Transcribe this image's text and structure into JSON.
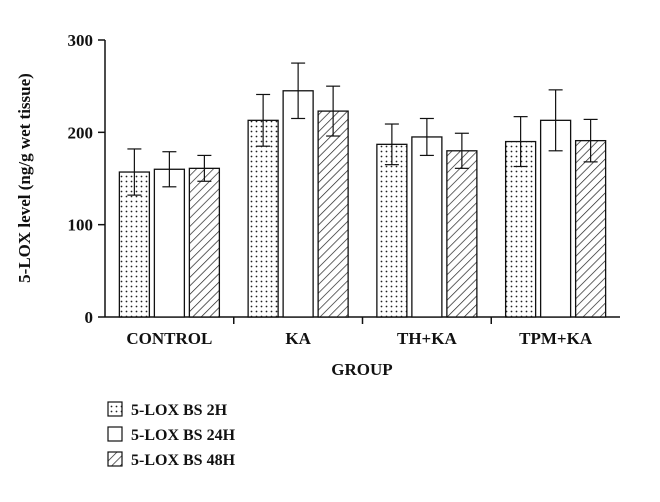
{
  "chart_data": {
    "type": "bar",
    "categories": [
      "CONTROL",
      "KA",
      "TH+KA",
      "TPM+KA"
    ],
    "series": [
      {
        "name": "5-LOX BS 2H",
        "values": [
          157,
          213,
          187,
          190
        ],
        "errors": [
          25,
          28,
          22,
          27
        ],
        "pattern": "dots"
      },
      {
        "name": "5-LOX BS 24H",
        "values": [
          160,
          245,
          195,
          213
        ],
        "errors": [
          19,
          30,
          20,
          33
        ],
        "pattern": "solid"
      },
      {
        "name": "5-LOX BS 48H",
        "values": [
          161,
          223,
          180,
          191
        ],
        "errors": [
          14,
          27,
          19,
          23
        ],
        "pattern": "hatch"
      }
    ],
    "xlabel": "GROUP",
    "ylabel": "5-LOX level (ng/g wet tissue)",
    "ylim": [
      0,
      300
    ],
    "yticks": [
      "0",
      "100",
      "200",
      "300"
    ],
    "grid": false,
    "legend_position": "bottom-left",
    "colors": {
      "stroke": "#111111",
      "fill": "#ffffff"
    }
  }
}
